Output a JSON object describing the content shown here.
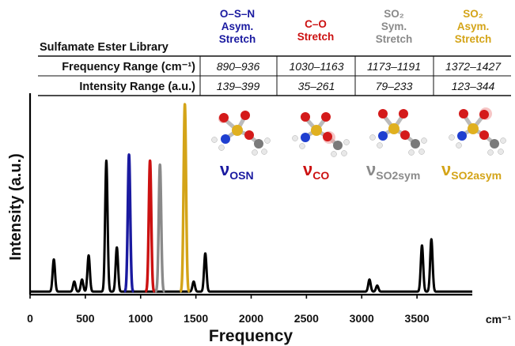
{
  "table": {
    "library_label": "Sulfamate Ester Library",
    "columns": [
      {
        "lines": [
          "O–S–N",
          "Asym.",
          "Stretch"
        ],
        "color": "#1a1aa0",
        "freq": "890–936",
        "intensity": "139–399"
      },
      {
        "lines": [
          "C–O",
          "Stretch"
        ],
        "color": "#cc1111",
        "freq": "1030–1163",
        "intensity": "35–261"
      },
      {
        "lines": [
          "SO₂",
          "Sym.",
          "Stretch"
        ],
        "color": "#8a8a8a",
        "freq": "1173–1191",
        "intensity": "79–233"
      },
      {
        "lines": [
          "SO₂",
          "Asym.",
          "Stretch"
        ],
        "color": "#d4a418",
        "freq": "1372–1427",
        "intensity": "123–344"
      }
    ],
    "rows": [
      {
        "label": "Frequency Range (cm⁻¹)"
      },
      {
        "label": "Intensity Range (a.u.)"
      }
    ]
  },
  "modes": [
    {
      "symbol": "ν",
      "sub": "OSN",
      "color": "#1a1aa0"
    },
    {
      "symbol": "ν",
      "sub": "CO",
      "color": "#cc1111"
    },
    {
      "symbol": "ν",
      "sub": "SO2sym",
      "color": "#8a8a8a"
    },
    {
      "symbol": "ν",
      "sub": "SO2asym",
      "color": "#d4a418"
    }
  ],
  "chart_data": {
    "type": "line",
    "xlabel": "Frequency",
    "ylabel": "Intensity (a.u.)",
    "x_unit": "cm⁻¹",
    "xlim": [
      0,
      4000
    ],
    "ylim": [
      0,
      1
    ],
    "xticks": [
      0,
      500,
      1000,
      1500,
      2000,
      2500,
      3000,
      3500
    ],
    "grid": false,
    "baseline": 0.015,
    "peak_width_cm1": 11,
    "series": [
      {
        "color": "#000000",
        "peaks": [
          [
            215,
            0.16
          ],
          [
            400,
            0.05
          ],
          [
            470,
            0.06
          ],
          [
            530,
            0.18
          ],
          [
            690,
            0.65
          ],
          [
            785,
            0.22
          ],
          [
            1480,
            0.05
          ],
          [
            1585,
            0.19
          ],
          [
            3070,
            0.06
          ],
          [
            3140,
            0.03
          ],
          [
            3545,
            0.23
          ],
          [
            3630,
            0.26
          ]
        ]
      },
      {
        "color": "#1a1aa0",
        "peaks": [
          [
            895,
            0.68
          ]
        ]
      },
      {
        "color": "#cc1111",
        "peaks": [
          [
            1085,
            0.65
          ]
        ]
      },
      {
        "color": "#8a8a8a",
        "peaks": [
          [
            1175,
            0.63
          ]
        ]
      },
      {
        "color": "#d4a418",
        "peaks": [
          [
            1400,
            0.93
          ]
        ]
      }
    ]
  }
}
